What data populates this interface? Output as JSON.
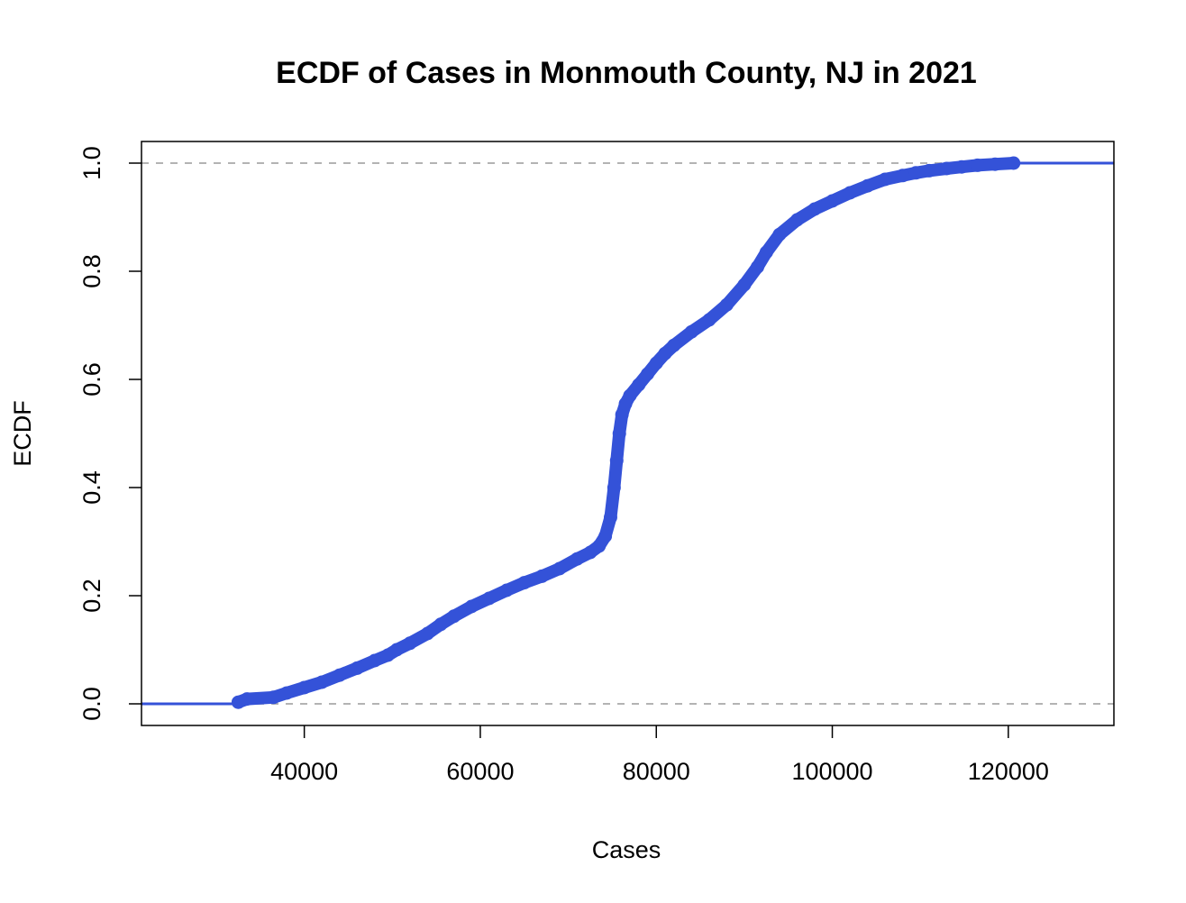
{
  "chart_data": {
    "type": "line",
    "title": "ECDF of Cases in Monmouth County, NJ in 2021",
    "xlabel": "Cases",
    "ylabel": "ECDF",
    "xlim": [
      21500,
      132000
    ],
    "ylim": [
      -0.04,
      1.04
    ],
    "x_ticks": [
      40000,
      60000,
      80000,
      100000,
      120000
    ],
    "x_tick_labels": [
      "40000",
      "60000",
      "80000",
      "100000",
      "120000"
    ],
    "y_ticks": [
      0.0,
      0.2,
      0.4,
      0.6,
      0.8,
      1.0
    ],
    "y_tick_labels": [
      "0.0",
      "0.2",
      "0.4",
      "0.6",
      "0.8",
      "1.0"
    ],
    "reference_lines": [
      0,
      1
    ],
    "series": [
      {
        "color": "#3452d8",
        "x": [
          32500,
          33500,
          36500,
          38000,
          40000,
          42000,
          44000,
          46000,
          48000,
          49500,
          50500,
          52000,
          54000,
          55500,
          57000,
          59000,
          61000,
          63000,
          65000,
          67000,
          69000,
          71000,
          72500,
          73500,
          74200,
          74800,
          75200,
          75500,
          75800,
          76100,
          76500,
          77000,
          78000,
          79000,
          80000,
          81000,
          82000,
          84000,
          86000,
          88000,
          90000,
          91500,
          92500,
          94000,
          96000,
          98000,
          100000,
          102000,
          104000,
          106000,
          108000,
          109500,
          111000,
          113000,
          114700,
          116500,
          118500,
          120600
        ],
        "y": [
          0.003,
          0.009,
          0.012,
          0.02,
          0.03,
          0.04,
          0.053,
          0.066,
          0.08,
          0.09,
          0.1,
          0.112,
          0.13,
          0.147,
          0.162,
          0.18,
          0.195,
          0.21,
          0.224,
          0.236,
          0.25,
          0.268,
          0.28,
          0.292,
          0.31,
          0.345,
          0.4,
          0.45,
          0.5,
          0.535,
          0.555,
          0.57,
          0.59,
          0.61,
          0.63,
          0.648,
          0.663,
          0.688,
          0.71,
          0.738,
          0.775,
          0.808,
          0.835,
          0.868,
          0.895,
          0.915,
          0.93,
          0.945,
          0.958,
          0.97,
          0.977,
          0.982,
          0.986,
          0.99,
          0.993,
          0.996,
          0.998,
          1.0
        ]
      }
    ]
  }
}
